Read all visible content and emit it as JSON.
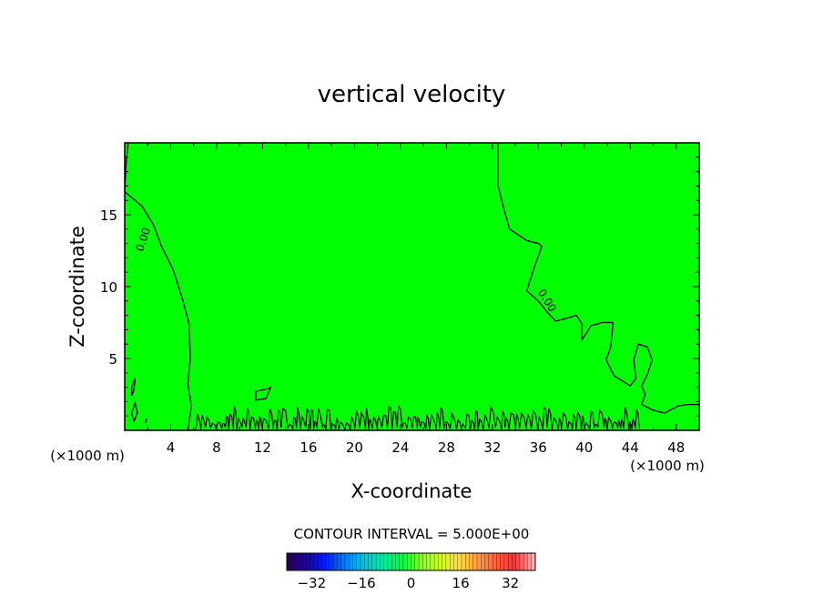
{
  "chart_data": {
    "type": "heatmap",
    "title": "vertical velocity",
    "xlabel": "X-coordinate",
    "ylabel": "Z-coordinate",
    "x_unit_left": "(×1000 m)",
    "x_unit_right": "(×1000 m)",
    "xlim": [
      0,
      50
    ],
    "ylim": [
      0,
      20
    ],
    "x_ticks": [
      4,
      8,
      12,
      16,
      20,
      24,
      28,
      32,
      36,
      40,
      44,
      48
    ],
    "y_ticks": [
      5,
      10,
      15
    ],
    "field_color": "#00ff00",
    "contour_color": "#000000",
    "contour_label": "0.00",
    "contour_interval_text": "CONTOUR INTERVAL = 5.000E+00",
    "colorbar": {
      "ticks": [
        -32,
        -16,
        0,
        16,
        32
      ],
      "tick_labels": [
        "−32",
        "−16",
        "0",
        "16",
        "32"
      ],
      "range": [
        -40,
        40
      ],
      "colors": [
        "#2a0050",
        "#1a00b0",
        "#0020ff",
        "#0080ff",
        "#00c8e0",
        "#00e8a0",
        "#00ff40",
        "#80ff20",
        "#d0ff20",
        "#ffe040",
        "#ffa040",
        "#ff6040",
        "#ff3030",
        "#ffb0b0"
      ]
    },
    "contours": [
      {
        "level": 0,
        "points": [
          [
            0.3,
            20
          ],
          [
            0.1,
            18.4
          ],
          [
            0,
            16.6
          ],
          [
            1.5,
            15.6
          ],
          [
            2.5,
            14.3
          ],
          [
            3.2,
            12.8
          ],
          [
            4.2,
            11.2
          ],
          [
            5.0,
            9.2
          ],
          [
            5.6,
            7.4
          ],
          [
            5.7,
            5.0
          ],
          [
            5.5,
            3.2
          ],
          [
            5.8,
            1.7
          ],
          [
            5.5,
            0
          ]
        ]
      },
      {
        "level": 0,
        "points": [
          [
            32.5,
            20
          ],
          [
            32.5,
            17.0
          ],
          [
            33.0,
            15.4
          ],
          [
            33.5,
            14.0
          ],
          [
            35.0,
            13.2
          ],
          [
            36.0,
            13.0
          ],
          [
            36.3,
            12.8
          ],
          [
            35.5,
            11.0
          ],
          [
            35.0,
            9.7
          ],
          [
            36.0,
            9.0
          ],
          [
            36.8,
            8.2
          ],
          [
            37.5,
            7.6
          ],
          [
            38.5,
            7.8
          ],
          [
            39.3,
            8.0
          ],
          [
            39.8,
            7.4
          ],
          [
            39.8,
            6.3
          ],
          [
            40.6,
            7.3
          ],
          [
            41.2,
            7.4
          ],
          [
            41.5,
            7.5
          ],
          [
            42.5,
            7.5
          ],
          [
            42.3,
            5.8
          ],
          [
            41.9,
            4.9
          ],
          [
            42.6,
            3.8
          ],
          [
            44.0,
            3.1
          ],
          [
            44.5,
            3.6
          ],
          [
            44.3,
            4.9
          ],
          [
            44.7,
            6.0
          ],
          [
            45.5,
            5.8
          ],
          [
            45.9,
            4.9
          ],
          [
            45.5,
            3.9
          ],
          [
            45.0,
            3.1
          ],
          [
            45.3,
            2.5
          ],
          [
            45.0,
            1.8
          ]
        ]
      },
      {
        "level": 0,
        "points": [
          [
            45.0,
            1.8
          ],
          [
            46.0,
            1.4
          ],
          [
            47.0,
            1.2
          ],
          [
            48.2,
            1.7
          ],
          [
            49.0,
            1.8
          ],
          [
            50.0,
            1.8
          ]
        ]
      },
      {
        "level": 0,
        "points": [
          [
            11.4,
            2.7
          ],
          [
            12.5,
            2.9
          ],
          [
            12.7,
            3.0
          ],
          [
            12.3,
            2.2
          ],
          [
            11.4,
            2.1
          ],
          [
            11.4,
            2.7
          ]
        ]
      },
      {
        "level": 0,
        "points": [
          [
            0.6,
            3.0
          ],
          [
            0.9,
            3.6
          ],
          [
            0.8,
            2.8
          ],
          [
            0.6,
            2.4
          ],
          [
            0.6,
            3.0
          ]
        ]
      },
      {
        "level": 0,
        "points": [
          [
            0.8,
            0.6
          ],
          [
            0.6,
            1.2
          ],
          [
            0.9,
            1.9
          ],
          [
            1.1,
            1.2
          ],
          [
            0.8,
            0.6
          ]
        ]
      },
      {
        "level": 0,
        "points": [
          [
            1.8,
            0.5
          ],
          [
            1.9,
            0.8
          ]
        ]
      }
    ]
  }
}
